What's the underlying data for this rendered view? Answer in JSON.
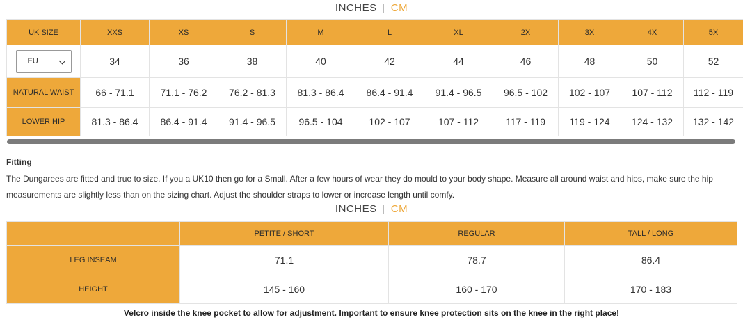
{
  "units": {
    "inches": "INCHES",
    "separator": "|",
    "cm": "CM"
  },
  "size_table": {
    "header_label": "UK SIZE",
    "sizes": [
      "XXS",
      "XS",
      "S",
      "M",
      "L",
      "XL",
      "2X",
      "3X",
      "4X",
      "5X"
    ],
    "region_select": {
      "value": "EU",
      "icon": "chevron-down-icon"
    },
    "eu": [
      "34",
      "36",
      "38",
      "40",
      "42",
      "44",
      "46",
      "48",
      "50",
      "52"
    ],
    "rows": [
      {
        "label": "NATURAL WAIST",
        "values": [
          "66 - 71.1",
          "71.1 - 76.2",
          "76.2 - 81.3",
          "81.3 - 86.4",
          "86.4 - 91.4",
          "91.4 - 96.5",
          "96.5 - 102",
          "102 - 107",
          "107 - 112",
          "112 - 119"
        ]
      },
      {
        "label": "LOWER HIP",
        "values": [
          "81.3 - 86.4",
          "86.4 - 91.4",
          "91.4 - 96.5",
          "96.5 - 104",
          "102 - 107",
          "107 - 112",
          "117 - 119",
          "119 - 124",
          "124 - 132",
          "132 - 142"
        ]
      }
    ]
  },
  "fitting": {
    "title": "Fitting",
    "text": "The Dungarees are fitted and true to size. If you a UK10 then go for a Small. After a few hours of wear they do mould to your body shape. Measure all around waist and hips, make sure the hip measurements are slightly less than on the sizing chart. Adjust the shoulder straps to lower or increase length until comfy."
  },
  "leg_table": {
    "corner": "",
    "columns": [
      "PETITE / SHORT",
      "REGULAR",
      "TALL / LONG"
    ],
    "rows": [
      {
        "label": "LEG INSEAM",
        "values": [
          "71.1",
          "78.7",
          "86.4"
        ]
      },
      {
        "label": "HEIGHT",
        "values": [
          "145 - 160",
          "160 - 170",
          "170 - 183"
        ]
      }
    ]
  },
  "footnote": "Velcro inside the knee pocket to allow for adjustment. Important to ensure knee protection sits on the knee in the right place!",
  "colors": {
    "accent": "#eea83a",
    "cm_text": "#eea83a",
    "scrollbar": "#7b7b7b"
  }
}
